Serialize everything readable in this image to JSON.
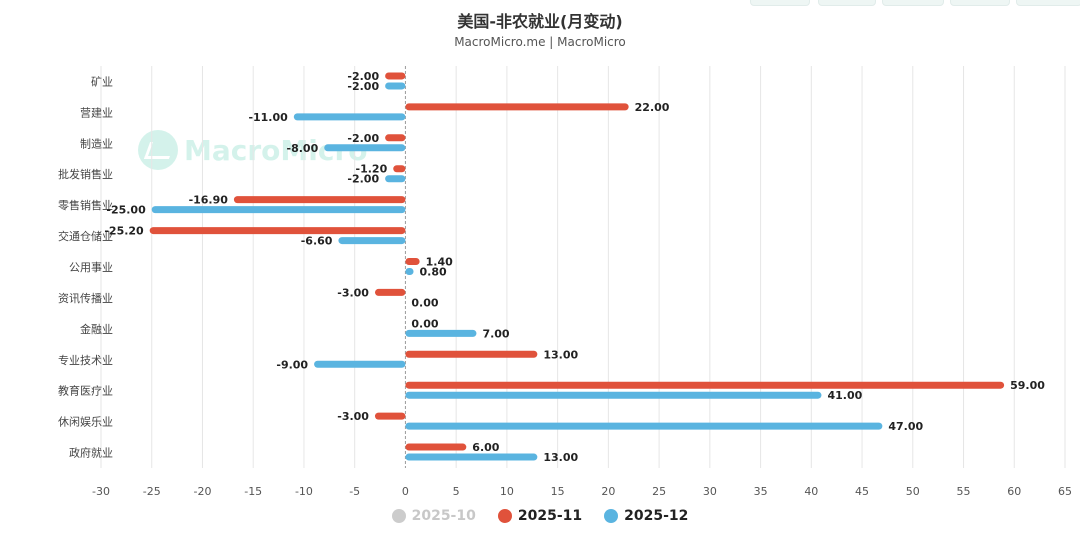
{
  "header": {
    "title": "美国-非农就业(月变动)",
    "subtitle": "MacroMicro.me | MacroMicro"
  },
  "watermark": {
    "text": "MacroMicro"
  },
  "chart_data": {
    "type": "bar",
    "orientation": "horizontal",
    "categories": [
      "矿业",
      "营建业",
      "制造业",
      "批发销售业",
      "零售销售业",
      "交通仓储业",
      "公用事业",
      "资讯传播业",
      "金融业",
      "专业技术业",
      "教育医疗业",
      "休闲娱乐业",
      "政府就业"
    ],
    "series": [
      {
        "name": "2025-11",
        "color": "#e0523b",
        "values": [
          -2.0,
          22.0,
          -2.0,
          -1.2,
          -16.9,
          -25.2,
          1.4,
          -3.0,
          0.0,
          13.0,
          59.0,
          -3.0,
          6.0
        ],
        "labels": [
          "-2.00",
          "22.00",
          "-2.00",
          "-1.20",
          "-16.90",
          "-25.20",
          "1.40",
          "-3.00",
          "0.00",
          "13.00",
          "59.00",
          "-3.00",
          "6.00"
        ]
      },
      {
        "name": "2025-12",
        "color": "#5ab4e0",
        "values": [
          -2.0,
          -11.0,
          -8.0,
          -2.0,
          -25.0,
          -6.6,
          0.8,
          0.0,
          7.0,
          -9.0,
          41.0,
          47.0,
          13.0
        ],
        "labels": [
          "-2.00",
          "-11.00",
          "-8.00",
          "-2.00",
          "-25.00",
          "-6.60",
          "0.80",
          "0.00",
          "7.00",
          "-9.00",
          "41.00",
          "47.00",
          "13.00"
        ]
      }
    ],
    "xlim": [
      -30,
      65
    ],
    "xticks": [
      "-30",
      "-25",
      "-20",
      "-15",
      "-10",
      "-5",
      "0",
      "5",
      "10",
      "15",
      "20",
      "25",
      "30",
      "35",
      "40",
      "45",
      "50",
      "55",
      "60",
      "65"
    ],
    "grid": "vertical",
    "legend_placement": "bottom-center"
  },
  "legend": [
    {
      "label": "2025-10",
      "color": "#cccccc",
      "disabled": true
    },
    {
      "label": "2025-11",
      "color": "#e0523b",
      "disabled": false
    },
    {
      "label": "2025-12",
      "color": "#5ab4e0",
      "disabled": false
    }
  ]
}
